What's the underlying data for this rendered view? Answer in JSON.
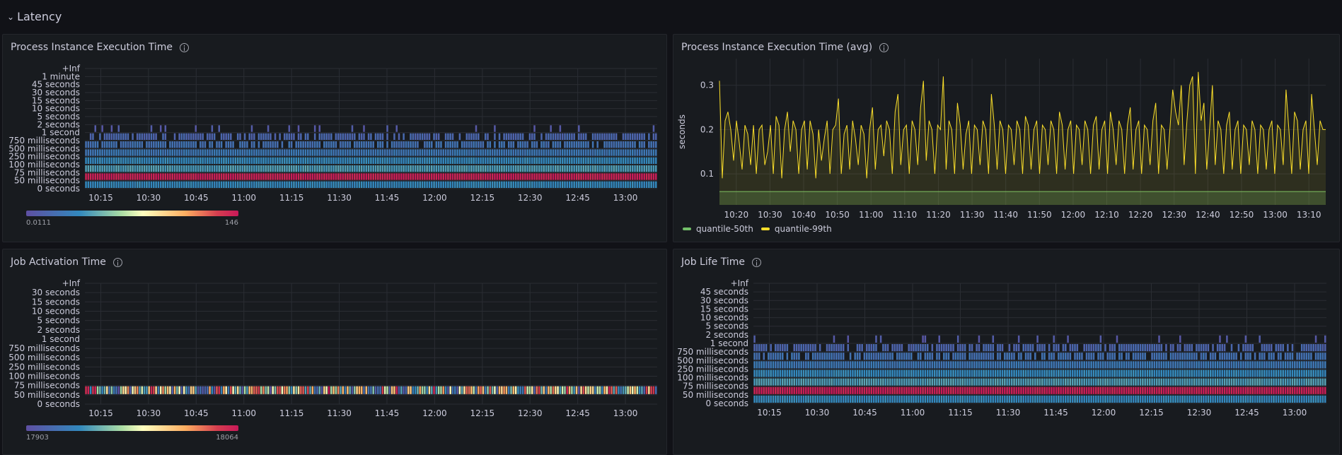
{
  "row": {
    "title": "Latency",
    "chevron_icon": "chevron-down-icon"
  },
  "colors": {
    "heat_low": "#5e5db9",
    "heat_mid": "#ffffbf",
    "heat_high": "#c81959",
    "q50": "#73bf69",
    "q99": "#fade2a"
  },
  "panels": {
    "p1": {
      "title": "Process Instance Execution Time",
      "y_buckets": [
        "0 seconds",
        "50 milliseconds",
        "75 milliseconds",
        "100 milliseconds",
        "250 milliseconds",
        "500 milliseconds",
        "750 milliseconds",
        "1 second",
        "2 seconds",
        "5 seconds",
        "10 seconds",
        "15 seconds",
        "30 seconds",
        "45 seconds",
        "1 minute",
        "+Inf"
      ],
      "x_ticks": [
        "10:15",
        "10:30",
        "10:45",
        "11:00",
        "11:15",
        "11:30",
        "11:45",
        "12:00",
        "12:15",
        "12:30",
        "12:45",
        "13:00"
      ],
      "scale_min": "0.0111",
      "scale_max": "146"
    },
    "p2": {
      "title": "Process Instance Execution Time (avg)",
      "ylabel": "seconds",
      "y_ticks": [
        "0.1",
        "0.2",
        "0.3"
      ],
      "x_ticks": [
        "10:20",
        "10:30",
        "10:40",
        "10:50",
        "11:00",
        "11:10",
        "11:20",
        "11:30",
        "11:40",
        "11:50",
        "12:00",
        "12:10",
        "12:20",
        "12:30",
        "12:40",
        "12:50",
        "13:00",
        "13:10"
      ],
      "legend": [
        "quantile-50th",
        "quantile-99th"
      ]
    },
    "p3": {
      "title": "Job Activation Time",
      "y_buckets": [
        "0 seconds",
        "50 milliseconds",
        "75 milliseconds",
        "100 milliseconds",
        "250 milliseconds",
        "500 milliseconds",
        "750 milliseconds",
        "1 second",
        "2 seconds",
        "5 seconds",
        "10 seconds",
        "15 seconds",
        "30 seconds",
        "+Inf"
      ],
      "x_ticks": [
        "10:15",
        "10:30",
        "10:45",
        "11:00",
        "11:15",
        "11:30",
        "11:45",
        "12:00",
        "12:15",
        "12:30",
        "12:45",
        "13:00"
      ],
      "scale_min": "17903",
      "scale_max": "18064"
    },
    "p4": {
      "title": "Job Life Time",
      "y_buckets": [
        "0 seconds",
        "50 milliseconds",
        "75 milliseconds",
        "100 milliseconds",
        "250 milliseconds",
        "500 milliseconds",
        "750 milliseconds",
        "1 second",
        "2 seconds",
        "5 seconds",
        "10 seconds",
        "15 seconds",
        "30 seconds",
        "45 seconds",
        "+Inf"
      ],
      "x_ticks": [
        "10:15",
        "10:30",
        "10:45",
        "11:00",
        "11:15",
        "11:30",
        "11:45",
        "12:00",
        "12:15",
        "12:30",
        "12:45",
        "13:00"
      ]
    }
  },
  "chart_data": [
    {
      "type": "heatmap",
      "title": "Process Instance Execution Time",
      "y_categories": [
        "0 seconds",
        "50 milliseconds",
        "75 milliseconds",
        "100 milliseconds",
        "250 milliseconds",
        "500 milliseconds",
        "750 milliseconds",
        "1 second",
        "2 seconds",
        "5 seconds",
        "10 seconds",
        "15 seconds",
        "30 seconds",
        "45 seconds",
        "1 minute",
        "+Inf"
      ],
      "x_range": [
        "10:10",
        "13:10"
      ],
      "bucket_levels": [
        0.25,
        0.98,
        0.3,
        0.25,
        0.18,
        0.15,
        0.1,
        0.05,
        0,
        0,
        0,
        0,
        0,
        0,
        0
      ],
      "color_scale": [
        0.0111,
        146
      ]
    },
    {
      "type": "line",
      "title": "Process Instance Execution Time (avg)",
      "ylabel": "seconds",
      "ylim": [
        0.03,
        0.36
      ],
      "x_range": [
        "10:15",
        "13:15"
      ],
      "series": [
        {
          "name": "quantile-50th",
          "values": [
            0.06
          ]
        },
        {
          "name": "quantile-99th",
          "values": [
            0.31,
            0.09,
            0.22,
            0.24,
            0.2,
            0.13,
            0.22,
            0.17,
            0.11,
            0.21,
            0.19,
            0.12,
            0.21,
            0.1,
            0.2,
            0.21,
            0.12,
            0.15,
            0.21,
            0.1,
            0.23,
            0.21,
            0.09,
            0.2,
            0.24,
            0.15,
            0.22,
            0.2,
            0.1,
            0.2,
            0.22,
            0.11,
            0.22,
            0.19,
            0.09,
            0.2,
            0.13,
            0.18,
            0.22,
            0.1,
            0.2,
            0.21,
            0.27,
            0.1,
            0.19,
            0.21,
            0.11,
            0.22,
            0.18,
            0.12,
            0.21,
            0.19,
            0.09,
            0.2,
            0.25,
            0.11,
            0.2,
            0.21,
            0.14,
            0.22,
            0.2,
            0.1,
            0.24,
            0.28,
            0.12,
            0.2,
            0.21,
            0.1,
            0.22,
            0.2,
            0.12,
            0.25,
            0.31,
            0.13,
            0.22,
            0.2,
            0.1,
            0.21,
            0.2,
            0.32,
            0.11,
            0.22,
            0.2,
            0.1,
            0.26,
            0.21,
            0.11,
            0.19,
            0.22,
            0.1,
            0.21,
            0.2,
            0.12,
            0.22,
            0.2,
            0.1,
            0.28,
            0.21,
            0.11,
            0.22,
            0.2,
            0.1,
            0.21,
            0.2,
            0.12,
            0.22,
            0.2,
            0.1,
            0.23,
            0.21,
            0.11,
            0.2,
            0.22,
            0.1,
            0.21,
            0.2,
            0.12,
            0.22,
            0.2,
            0.1,
            0.24,
            0.21,
            0.11,
            0.2,
            0.22,
            0.1,
            0.21,
            0.2,
            0.12,
            0.22,
            0.2,
            0.1,
            0.21,
            0.23,
            0.11,
            0.2,
            0.22,
            0.1,
            0.24,
            0.2,
            0.12,
            0.22,
            0.2,
            0.1,
            0.21,
            0.25,
            0.11,
            0.2,
            0.22,
            0.1,
            0.21,
            0.2,
            0.12,
            0.22,
            0.26,
            0.1,
            0.21,
            0.2,
            0.11,
            0.2,
            0.29,
            0.24,
            0.21,
            0.3,
            0.12,
            0.22,
            0.3,
            0.32,
            0.1,
            0.33,
            0.22,
            0.26,
            0.11,
            0.2,
            0.3,
            0.12,
            0.22,
            0.2,
            0.1,
            0.21,
            0.24,
            0.11,
            0.2,
            0.22,
            0.1,
            0.21,
            0.2,
            0.12,
            0.22,
            0.2,
            0.1,
            0.21,
            0.2,
            0.11,
            0.2,
            0.22,
            0.1,
            0.21,
            0.2,
            0.12,
            0.29,
            0.2,
            0.1,
            0.24,
            0.22,
            0.11,
            0.2,
            0.22,
            0.1,
            0.28,
            0.2,
            0.12,
            0.22,
            0.2,
            0.2
          ]
        }
      ],
      "legend_position": "bottom-left"
    },
    {
      "type": "heatmap",
      "title": "Job Activation Time",
      "y_categories": [
        "0 seconds",
        "50 milliseconds",
        "75 milliseconds",
        "100 milliseconds",
        "250 milliseconds",
        "500 milliseconds",
        "750 milliseconds",
        "1 second",
        "2 seconds",
        "5 seconds",
        "10 seconds",
        "15 seconds",
        "30 seconds",
        "+Inf"
      ],
      "x_range": [
        "10:10",
        "13:10"
      ],
      "bucket_levels": [
        0,
        0.5,
        0,
        0,
        0,
        0,
        0,
        0,
        0,
        0,
        0,
        0,
        0
      ],
      "color_scale": [
        17903,
        18064
      ]
    },
    {
      "type": "heatmap",
      "title": "Job Life Time",
      "y_categories": [
        "0 seconds",
        "50 milliseconds",
        "75 milliseconds",
        "100 milliseconds",
        "250 milliseconds",
        "500 milliseconds",
        "750 milliseconds",
        "1 second",
        "2 seconds",
        "5 seconds",
        "10 seconds",
        "15 seconds",
        "30 seconds",
        "45 seconds",
        "+Inf"
      ],
      "x_range": [
        "10:10",
        "13:10"
      ],
      "bucket_levels": [
        0.25,
        0.98,
        0.3,
        0.25,
        0.18,
        0.15,
        0.1,
        0.05,
        0,
        0,
        0,
        0,
        0,
        0
      ]
    }
  ]
}
